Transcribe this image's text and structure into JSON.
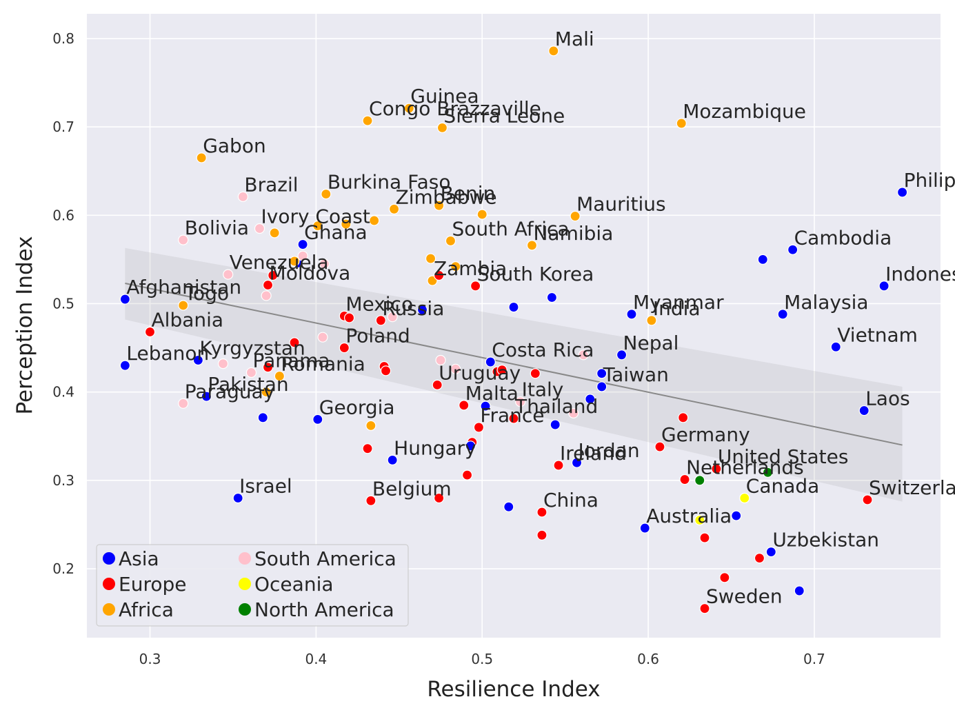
{
  "chart_data": {
    "type": "scatter",
    "xlabel": "Resilience Index",
    "ylabel": "Perception Index",
    "xlim": [
      0.262,
      0.776
    ],
    "ylim": [
      0.122,
      0.828
    ],
    "xticks": [
      "0.3",
      "0.4",
      "0.5",
      "0.6",
      "0.7"
    ],
    "yticks": [
      "0.2",
      "0.3",
      "0.4",
      "0.5",
      "0.6",
      "0.7",
      "0.8"
    ],
    "grid": true,
    "background": "#eaeaf2",
    "legend_placement": "lower-left",
    "groups": [
      {
        "name": "Asia",
        "color": "#0000ff"
      },
      {
        "name": "Europe",
        "color": "#ff0000"
      },
      {
        "name": "Africa",
        "color": "#ffa500"
      },
      {
        "name": "South America",
        "color": "#ffc0cb"
      },
      {
        "name": "Oceania",
        "color": "#ffff00"
      },
      {
        "name": "North America",
        "color": "#008000"
      }
    ],
    "trend_line": {
      "x": [
        0.285,
        0.753
      ],
      "y": [
        0.523,
        0.34
      ]
    },
    "confidence_band": {
      "x": [
        0.285,
        0.753
      ],
      "upper": [
        0.563,
        0.406
      ],
      "lower": [
        0.482,
        0.276
      ]
    },
    "points": [
      {
        "x": 0.543,
        "y": 0.786,
        "group": "Africa",
        "label": "Mali"
      },
      {
        "x": 0.456,
        "y": 0.721,
        "group": "Africa",
        "label": "Guinea"
      },
      {
        "x": 0.431,
        "y": 0.707,
        "group": "Africa",
        "label": "Congo Brazzaville"
      },
      {
        "x": 0.476,
        "y": 0.699,
        "group": "Africa",
        "label": "Sierra Leone"
      },
      {
        "x": 0.62,
        "y": 0.704,
        "group": "Africa",
        "label": "Mozambique"
      },
      {
        "x": 0.331,
        "y": 0.665,
        "group": "Africa",
        "label": "Gabon"
      },
      {
        "x": 0.406,
        "y": 0.624,
        "group": "Africa",
        "label": "Burkina Faso"
      },
      {
        "x": 0.356,
        "y": 0.621,
        "group": "South America",
        "label": "Brazil"
      },
      {
        "x": 0.447,
        "y": 0.607,
        "group": "Africa",
        "label": "Zimbabwe"
      },
      {
        "x": 0.474,
        "y": 0.611,
        "group": "Africa",
        "label": "Benin"
      },
      {
        "x": 0.556,
        "y": 0.599,
        "group": "Africa",
        "label": "Mauritius"
      },
      {
        "x": 0.753,
        "y": 0.626,
        "group": "Asia",
        "label": "Philippines"
      },
      {
        "x": 0.366,
        "y": 0.585,
        "group": "South America",
        "label": "Ivory Coast"
      },
      {
        "x": 0.481,
        "y": 0.571,
        "group": "Africa",
        "label": "South Africa"
      },
      {
        "x": 0.53,
        "y": 0.566,
        "group": "Africa",
        "label": "Namibia"
      },
      {
        "x": 0.32,
        "y": 0.572,
        "group": "South America",
        "label": "Bolivia"
      },
      {
        "x": 0.392,
        "y": 0.567,
        "group": "Asia",
        "label": "Ghana"
      },
      {
        "x": 0.687,
        "y": 0.561,
        "group": "Asia",
        "label": "Cambodia"
      },
      {
        "x": 0.347,
        "y": 0.533,
        "group": "South America",
        "label": "Venezuela"
      },
      {
        "x": 0.371,
        "y": 0.521,
        "group": "Europe",
        "label": "Moldova"
      },
      {
        "x": 0.47,
        "y": 0.526,
        "group": "Africa",
        "label": "Zambia"
      },
      {
        "x": 0.742,
        "y": 0.52,
        "group": "Asia",
        "label": "Indonesia"
      },
      {
        "x": 0.496,
        "y": 0.52,
        "group": "Europe",
        "label": "South Korea"
      },
      {
        "x": 0.285,
        "y": 0.505,
        "group": "Asia",
        "label": "Afghanistan"
      },
      {
        "x": 0.681,
        "y": 0.488,
        "group": "Asia",
        "label": "Malaysia"
      },
      {
        "x": 0.602,
        "y": 0.481,
        "group": "Africa",
        "label": "India"
      },
      {
        "x": 0.59,
        "y": 0.488,
        "group": "Asia",
        "label": "Myanmar"
      },
      {
        "x": 0.32,
        "y": 0.498,
        "group": "Africa",
        "label": "Togo"
      },
      {
        "x": 0.417,
        "y": 0.486,
        "group": "Europe",
        "label": "Mexico"
      },
      {
        "x": 0.439,
        "y": 0.481,
        "group": "Europe",
        "label": "Russia"
      },
      {
        "x": 0.713,
        "y": 0.451,
        "group": "Asia",
        "label": "Vietnam"
      },
      {
        "x": 0.3,
        "y": 0.468,
        "group": "Europe",
        "label": "Albania"
      },
      {
        "x": 0.584,
        "y": 0.442,
        "group": "Asia",
        "label": "Nepal"
      },
      {
        "x": 0.417,
        "y": 0.45,
        "group": "Europe",
        "label": "Poland"
      },
      {
        "x": 0.505,
        "y": 0.434,
        "group": "Asia",
        "label": "Costa Rica"
      },
      {
        "x": 0.329,
        "y": 0.436,
        "group": "Asia",
        "label": "Kyrgyzstan"
      },
      {
        "x": 0.285,
        "y": 0.43,
        "group": "Asia",
        "label": "Lebanon"
      },
      {
        "x": 0.361,
        "y": 0.422,
        "group": "South America",
        "label": "Panama"
      },
      {
        "x": 0.378,
        "y": 0.418,
        "group": "Africa",
        "label": "Romania"
      },
      {
        "x": 0.473,
        "y": 0.408,
        "group": "Europe",
        "label": "Uruguay"
      },
      {
        "x": 0.572,
        "y": 0.406,
        "group": "Asia",
        "label": "Taiwan"
      },
      {
        "x": 0.523,
        "y": 0.389,
        "group": "South America",
        "label": "Italy"
      },
      {
        "x": 0.334,
        "y": 0.395,
        "group": "Asia",
        "label": "Pakistan"
      },
      {
        "x": 0.32,
        "y": 0.387,
        "group": "South America",
        "label": "Paraguay"
      },
      {
        "x": 0.73,
        "y": 0.379,
        "group": "Asia",
        "label": "Laos"
      },
      {
        "x": 0.519,
        "y": 0.37,
        "group": "Europe",
        "label": "Thailand"
      },
      {
        "x": 0.489,
        "y": 0.385,
        "group": "Europe",
        "label": "Malta"
      },
      {
        "x": 0.401,
        "y": 0.369,
        "group": "Asia",
        "label": "Georgia"
      },
      {
        "x": 0.498,
        "y": 0.36,
        "group": "Europe",
        "label": "France"
      },
      {
        "x": 0.607,
        "y": 0.338,
        "group": "Europe",
        "label": "Germany"
      },
      {
        "x": 0.546,
        "y": 0.317,
        "group": "Europe",
        "label": "Ireland"
      },
      {
        "x": 0.557,
        "y": 0.32,
        "group": "Asia",
        "label": "Jordan"
      },
      {
        "x": 0.446,
        "y": 0.323,
        "group": "Asia",
        "label": "Hungary"
      },
      {
        "x": 0.641,
        "y": 0.313,
        "group": "Europe",
        "label": "United States"
      },
      {
        "x": 0.353,
        "y": 0.28,
        "group": "Asia",
        "label": "Israel"
      },
      {
        "x": 0.622,
        "y": 0.301,
        "group": "Europe",
        "label": "Netherlands"
      },
      {
        "x": 0.732,
        "y": 0.278,
        "group": "Europe",
        "label": "Switzerland"
      },
      {
        "x": 0.658,
        "y": 0.28,
        "group": "Oceania",
        "label": "Canada"
      },
      {
        "x": 0.433,
        "y": 0.277,
        "group": "Europe",
        "label": "Belgium"
      },
      {
        "x": 0.536,
        "y": 0.264,
        "group": "Europe",
        "label": "China"
      },
      {
        "x": 0.598,
        "y": 0.246,
        "group": "Asia",
        "label": "Australia"
      },
      {
        "x": 0.674,
        "y": 0.219,
        "group": "Asia",
        "label": "Uzbekistan"
      },
      {
        "x": 0.634,
        "y": 0.155,
        "group": "Europe",
        "label": "Sweden"
      },
      {
        "x": 0.374,
        "y": 0.532,
        "group": "Europe"
      },
      {
        "x": 0.389,
        "y": 0.546,
        "group": "Asia"
      },
      {
        "x": 0.392,
        "y": 0.554,
        "group": "South America"
      },
      {
        "x": 0.387,
        "y": 0.548,
        "group": "Africa"
      },
      {
        "x": 0.405,
        "y": 0.545,
        "group": "South America"
      },
      {
        "x": 0.375,
        "y": 0.58,
        "group": "Africa"
      },
      {
        "x": 0.401,
        "y": 0.588,
        "group": "Africa"
      },
      {
        "x": 0.418,
        "y": 0.59,
        "group": "Africa"
      },
      {
        "x": 0.435,
        "y": 0.594,
        "group": "Africa"
      },
      {
        "x": 0.5,
        "y": 0.601,
        "group": "Africa"
      },
      {
        "x": 0.469,
        "y": 0.551,
        "group": "Africa"
      },
      {
        "x": 0.484,
        "y": 0.542,
        "group": "Africa"
      },
      {
        "x": 0.474,
        "y": 0.532,
        "group": "Europe"
      },
      {
        "x": 0.37,
        "y": 0.509,
        "group": "South America"
      },
      {
        "x": 0.464,
        "y": 0.493,
        "group": "Asia"
      },
      {
        "x": 0.519,
        "y": 0.496,
        "group": "Asia"
      },
      {
        "x": 0.542,
        "y": 0.507,
        "group": "Asia"
      },
      {
        "x": 0.669,
        "y": 0.55,
        "group": "Asia"
      },
      {
        "x": 0.42,
        "y": 0.484,
        "group": "Europe"
      },
      {
        "x": 0.446,
        "y": 0.485,
        "group": "South America"
      },
      {
        "x": 0.404,
        "y": 0.462,
        "group": "South America"
      },
      {
        "x": 0.387,
        "y": 0.456,
        "group": "Europe"
      },
      {
        "x": 0.344,
        "y": 0.432,
        "group": "South America"
      },
      {
        "x": 0.371,
        "y": 0.428,
        "group": "Europe"
      },
      {
        "x": 0.441,
        "y": 0.429,
        "group": "Europe"
      },
      {
        "x": 0.442,
        "y": 0.424,
        "group": "Europe"
      },
      {
        "x": 0.475,
        "y": 0.436,
        "group": "South America"
      },
      {
        "x": 0.484,
        "y": 0.426,
        "group": "South America"
      },
      {
        "x": 0.509,
        "y": 0.423,
        "group": "Europe"
      },
      {
        "x": 0.512,
        "y": 0.425,
        "group": "Europe"
      },
      {
        "x": 0.532,
        "y": 0.421,
        "group": "Europe"
      },
      {
        "x": 0.561,
        "y": 0.442,
        "group": "South America"
      },
      {
        "x": 0.572,
        "y": 0.421,
        "group": "Asia"
      },
      {
        "x": 0.565,
        "y": 0.392,
        "group": "Asia"
      },
      {
        "x": 0.555,
        "y": 0.376,
        "group": "South America"
      },
      {
        "x": 0.37,
        "y": 0.4,
        "group": "Africa"
      },
      {
        "x": 0.368,
        "y": 0.371,
        "group": "Asia"
      },
      {
        "x": 0.433,
        "y": 0.362,
        "group": "Africa"
      },
      {
        "x": 0.502,
        "y": 0.384,
        "group": "Asia"
      },
      {
        "x": 0.544,
        "y": 0.363,
        "group": "Asia"
      },
      {
        "x": 0.621,
        "y": 0.371,
        "group": "Europe"
      },
      {
        "x": 0.494,
        "y": 0.343,
        "group": "Europe"
      },
      {
        "x": 0.493,
        "y": 0.339,
        "group": "Asia"
      },
      {
        "x": 0.431,
        "y": 0.336,
        "group": "Europe"
      },
      {
        "x": 0.491,
        "y": 0.306,
        "group": "Europe"
      },
      {
        "x": 0.474,
        "y": 0.28,
        "group": "Europe"
      },
      {
        "x": 0.516,
        "y": 0.27,
        "group": "Asia"
      },
      {
        "x": 0.631,
        "y": 0.3,
        "group": "North America"
      },
      {
        "x": 0.672,
        "y": 0.309,
        "group": "North America"
      },
      {
        "x": 0.631,
        "y": 0.255,
        "group": "Oceania"
      },
      {
        "x": 0.653,
        "y": 0.26,
        "group": "Asia"
      },
      {
        "x": 0.536,
        "y": 0.238,
        "group": "Europe"
      },
      {
        "x": 0.634,
        "y": 0.235,
        "group": "Europe"
      },
      {
        "x": 0.667,
        "y": 0.212,
        "group": "Europe"
      },
      {
        "x": 0.646,
        "y": 0.19,
        "group": "Europe"
      },
      {
        "x": 0.691,
        "y": 0.175,
        "group": "Asia"
      }
    ]
  }
}
